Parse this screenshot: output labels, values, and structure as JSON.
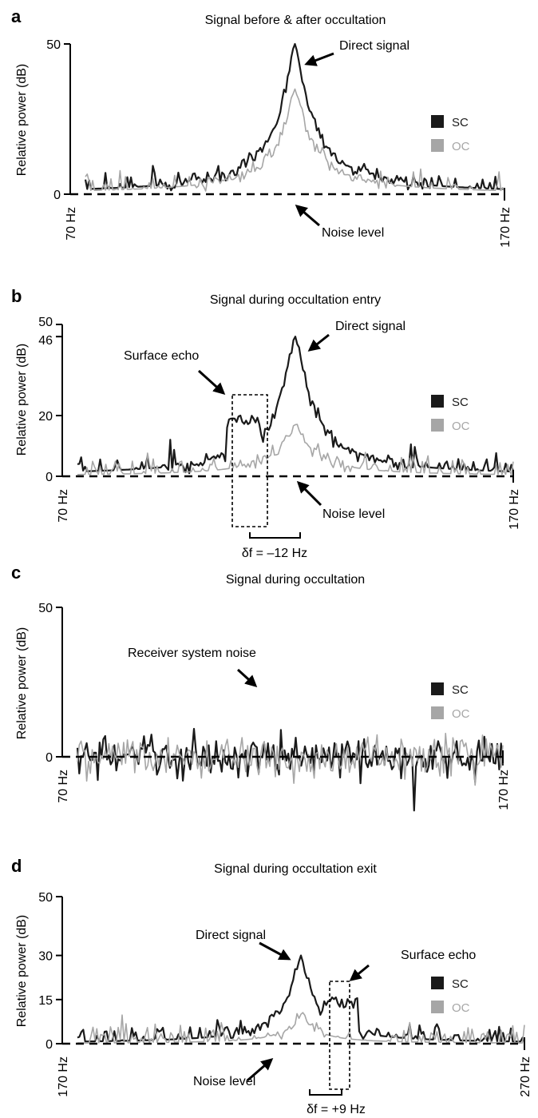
{
  "legend": {
    "sc": "SC",
    "oc": "OC",
    "colors": {
      "sc": "#1a1a1a",
      "oc": "#a6a6a6"
    }
  },
  "ylabel": "Relative power (dB)",
  "chart_data": [
    {
      "panel": "a",
      "type": "line",
      "title": "Signal before & after occultation",
      "ylabel": "Relative power (dB)",
      "xlim_label": [
        "70 Hz",
        "170 Hz"
      ],
      "xlim": [
        70,
        170
      ],
      "yticks": [
        0,
        50
      ],
      "ylim": [
        0,
        50
      ],
      "noise_level": 0,
      "series": [
        {
          "name": "SC",
          "peak": {
            "x": 120,
            "y": 50
          },
          "noise_std": 3.2
        },
        {
          "name": "OC",
          "peak": {
            "x": 120,
            "y": 35
          },
          "noise_std": 3.2
        }
      ],
      "annotations": [
        {
          "text": "Direct signal"
        },
        {
          "text": "Noise level"
        }
      ]
    },
    {
      "panel": "b",
      "type": "line",
      "title": "Signal during occultation entry",
      "ylabel": "Relative power (dB)",
      "xlim_label": [
        "70 Hz",
        "170 Hz"
      ],
      "xlim": [
        70,
        170
      ],
      "yticks": [
        0,
        20,
        46,
        50
      ],
      "ylim": [
        0,
        50
      ],
      "noise_level": 0,
      "series": [
        {
          "name": "SC",
          "peak": {
            "x": 120,
            "y": 46
          },
          "echo": {
            "x": 108,
            "y": 19
          },
          "noise_std": 3.2
        },
        {
          "name": "OC",
          "peak": {
            "x": 120,
            "y": 17
          },
          "noise_std": 3.2
        }
      ],
      "annotations": [
        {
          "text": "Direct signal"
        },
        {
          "text": "Surface echo"
        },
        {
          "text": "Noise level"
        },
        {
          "text": "δf = –12 Hz"
        }
      ]
    },
    {
      "panel": "c",
      "type": "line",
      "title": "Signal during occultation",
      "ylabel": "Relative power (dB)",
      "xlim_label": [
        "70 Hz",
        "170 Hz"
      ],
      "xlim": [
        70,
        170
      ],
      "yticks": [
        0,
        50
      ],
      "ylim": [
        0,
        50
      ],
      "noise_level": 0,
      "series": [
        {
          "name": "SC",
          "noise_std": 3.5
        },
        {
          "name": "OC",
          "noise_std": 3.5
        }
      ],
      "annotations": [
        {
          "text": "Receiver system noise"
        }
      ]
    },
    {
      "panel": "d",
      "type": "line",
      "title": "Signal during occultation exit",
      "ylabel": "Relative power (dB)",
      "xlim_label": [
        "170 Hz",
        "270 Hz"
      ],
      "xlim": [
        170,
        270
      ],
      "yticks": [
        0,
        15,
        30,
        50
      ],
      "ylim": [
        0,
        50
      ],
      "noise_level": 0,
      "series": [
        {
          "name": "SC",
          "peak": {
            "x": 220,
            "y": 30
          },
          "echo": {
            "x": 229,
            "y": 15
          },
          "noise_std": 3.2
        },
        {
          "name": "OC",
          "peak": {
            "x": 220,
            "y": 10
          },
          "noise_std": 3.2
        }
      ],
      "annotations": [
        {
          "text": "Direct signal"
        },
        {
          "text": "Surface echo"
        },
        {
          "text": "Noise level"
        },
        {
          "text": "δf = +9 Hz"
        }
      ]
    }
  ]
}
